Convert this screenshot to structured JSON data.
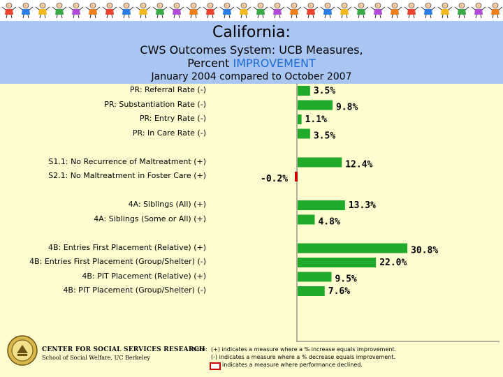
{
  "header": {
    "title": "California:",
    "subtitle_line1": "CWS Outcomes System: UCB Measures,",
    "subtitle_line2_prefix": "Percent ",
    "subtitle_line2_highlight": "IMPROVEMENT",
    "period": "January 2004 compared to October 2007"
  },
  "colors": {
    "bar_fill": "#1faa2a",
    "decline_fill": "#cc0000",
    "header_band": "#a9c6f2",
    "background": "#fdfdd0",
    "highlight_text": "#1c6ad6"
  },
  "footer": {
    "org_line1": "CENTER FOR SOCIAL SERVICES RESEARCH",
    "org_line2": "School of Social Welfare, UC Berkeley",
    "note_label": "Note:",
    "note_line1": "(+) indicates a measure where a % increase equals improvement.",
    "note_line2": "(-) indicates a measure where a % decrease equals improvement.",
    "note_line3": "indicates a measure where performance declined."
  },
  "chart_data": {
    "type": "bar",
    "orientation": "horizontal",
    "categories": [
      "PR: Referral Rate (-)",
      "PR: Substantiation Rate (-)",
      "PR: Entry Rate (-)",
      "PR: In Care Rate (-)",
      "",
      "S1.1: No Recurrence of Maltreatment (+)",
      "S2.1: No Maltreatment in Foster Care (+)",
      "",
      "4A: Siblings (All) (+)",
      "4A: Siblings (Some or All) (+)",
      "",
      "4B: Entries First Placement (Relative) (+)",
      "4B: Entries First Placement (Group/Shelter) (-)",
      "4B: PIT Placement (Relative) (+)",
      "4B: PIT Placement (Group/Shelter) (-)"
    ],
    "values": [
      3.5,
      9.8,
      1.1,
      3.5,
      null,
      12.4,
      -0.2,
      null,
      13.3,
      4.8,
      null,
      30.8,
      22.0,
      9.5,
      7.6
    ],
    "value_labels": [
      "3.5%",
      "9.8%",
      "1.1%",
      "3.5%",
      "",
      "12.4%",
      "-0.2%",
      "",
      "13.3%",
      "4.8%",
      "",
      "30.8%",
      "22.0%",
      "9.5%",
      "7.6%"
    ],
    "declined": [
      false,
      false,
      false,
      false,
      false,
      false,
      true,
      false,
      false,
      false,
      false,
      false,
      false,
      false,
      false
    ],
    "xlim": [
      -0.2,
      31
    ],
    "grid": false,
    "legend": "none"
  }
}
